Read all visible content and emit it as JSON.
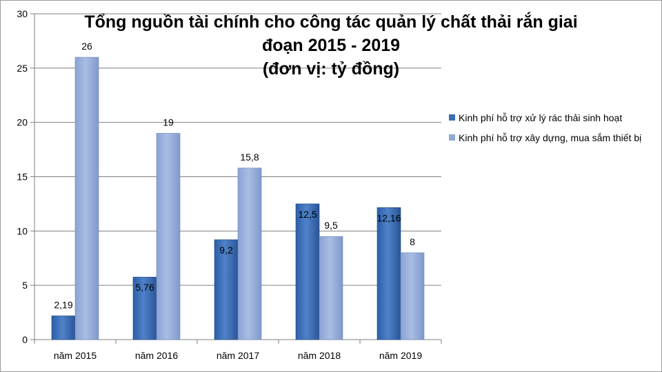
{
  "chart_data": {
    "type": "bar",
    "title_lines": [
      "Tổng nguồn tài chính cho công tác quản lý chất thải rắn giai",
      "đoạn 2015 - 2019",
      "(đơn vị: tỷ đồng)"
    ],
    "categories": [
      "năm 2015",
      "năm 2016",
      "năm 2017",
      "năm 2018",
      "năm 2019"
    ],
    "series": [
      {
        "name": "Kinh phí hỗ trợ xử lý rác thải sinh hoạt",
        "values": [
          2.19,
          5.76,
          9.2,
          12.5,
          12.16
        ],
        "labels": [
          "2,19",
          "5,76",
          "9,2",
          "12,5",
          "12,16"
        ],
        "color": "#3b6db5"
      },
      {
        "name": "Kinh phí hỗ trợ xây dựng, mua sắm thiết bị",
        "values": [
          26,
          19,
          15.8,
          9.5,
          8
        ],
        "labels": [
          "26",
          "19",
          "15,8",
          "9,5",
          "8"
        ],
        "color": "#91a9d8"
      }
    ],
    "ylim": [
      0,
      30
    ],
    "yticks": [
      0,
      5,
      10,
      15,
      20,
      25,
      30
    ],
    "grid": true,
    "legend_position": "right"
  }
}
